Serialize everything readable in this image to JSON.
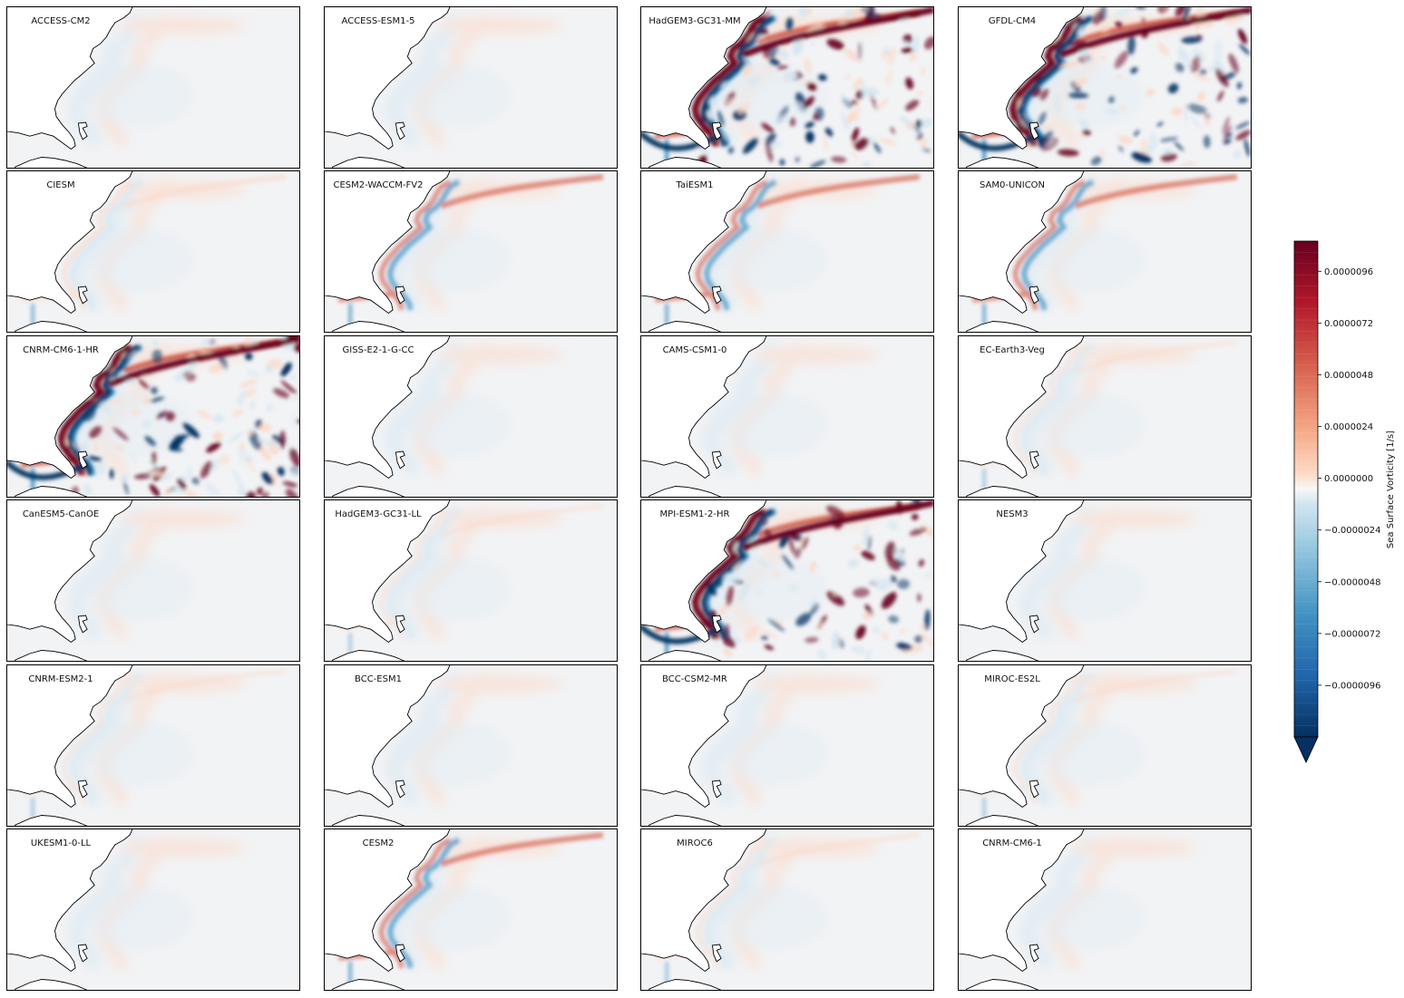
{
  "figure": {
    "panels": [
      {
        "title": "ACCESS-CM2",
        "activity": 0.1
      },
      {
        "title": "ACCESS-ESM1-5",
        "activity": 0.1
      },
      {
        "title": "HadGEM3-GC31-MM",
        "activity": 1.0
      },
      {
        "title": "GFDL-CM4",
        "activity": 0.9
      },
      {
        "title": "CIESM",
        "activity": 0.4
      },
      {
        "title": "CESM2-WACCM-FV2",
        "activity": 0.5
      },
      {
        "title": "TaiESM1",
        "activity": 0.5
      },
      {
        "title": "SAM0-UNICON",
        "activity": 0.5
      },
      {
        "title": "CNRM-CM6-1-HR",
        "activity": 1.0
      },
      {
        "title": "GISS-E2-1-G-CC",
        "activity": 0.1
      },
      {
        "title": "CAMS-CSM1-0",
        "activity": 0.08
      },
      {
        "title": "EC-Earth3-Veg",
        "activity": 0.2
      },
      {
        "title": "CanESM5-CanOE",
        "activity": 0.15
      },
      {
        "title": "HadGEM3-GC31-LL",
        "activity": 0.2
      },
      {
        "title": "MPI-ESM1-2-HR",
        "activity": 0.75
      },
      {
        "title": "NESM3",
        "activity": 0.15
      },
      {
        "title": "CNRM-ESM2-1",
        "activity": 0.2
      },
      {
        "title": "BCC-ESM1",
        "activity": 0.1
      },
      {
        "title": "BCC-CSM2-MR",
        "activity": 0.1
      },
      {
        "title": "MIROC-ES2L",
        "activity": 0.2
      },
      {
        "title": "UKESM1-0-LL",
        "activity": 0.15
      },
      {
        "title": "CESM2",
        "activity": 0.5
      },
      {
        "title": "MIROC6",
        "activity": 0.25
      },
      {
        "title": "CNRM-CM6-1",
        "activity": 0.15
      }
    ]
  },
  "colorbar": {
    "label": "Sea Surface Vorticity [1/s]",
    "vmin": -1.2e-05,
    "vmax": 1.1e-05,
    "extend": "min",
    "colormap": "RdBu_r",
    "ticks": [
      {
        "value": 9.6e-06,
        "label": "0.0000096"
      },
      {
        "value": 7.2e-06,
        "label": "0.0000072"
      },
      {
        "value": 4.8e-06,
        "label": "0.0000048"
      },
      {
        "value": 2.4e-06,
        "label": "0.0000024"
      },
      {
        "value": 0.0,
        "label": "0.0000000"
      },
      {
        "value": -2.4e-06,
        "label": "−0.0000024"
      },
      {
        "value": -4.8e-06,
        "label": "−0.0000048"
      },
      {
        "value": -7.2e-06,
        "label": "−0.0000072"
      },
      {
        "value": -9.6e-06,
        "label": "−0.0000096"
      }
    ]
  },
  "colors": {
    "neutral": "#f2f3f5",
    "strong_pos": "#67001f",
    "pos": "#d6604d",
    "weak_pos": "#fbd9c8",
    "weak_neg": "#d6e7f1",
    "neg": "#4393c3",
    "strong_neg": "#053061",
    "land": "#ffffff",
    "coast": "#000000"
  }
}
